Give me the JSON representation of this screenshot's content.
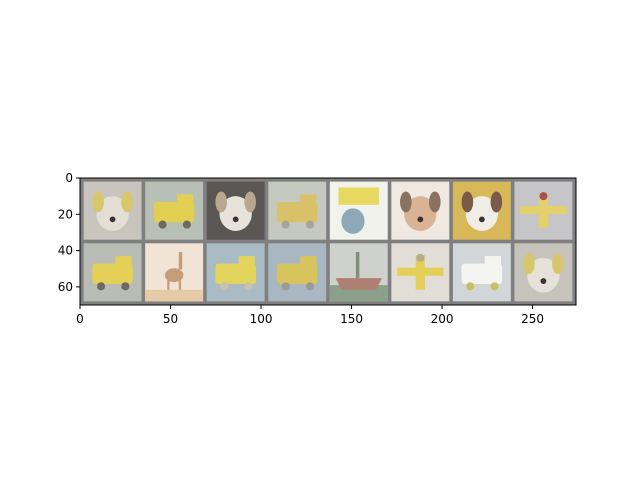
{
  "chart_data": {
    "type": "image_grid",
    "title": "",
    "xlabel": "",
    "ylabel": "",
    "xlim": [
      0,
      274
    ],
    "ylim": [
      70,
      0
    ],
    "xticks": [
      0,
      50,
      100,
      150,
      200,
      250
    ],
    "yticks": [
      0,
      20,
      40,
      60
    ],
    "grid": false,
    "legend": "none",
    "grid_layout": {
      "rows": 2,
      "cols": 8,
      "tile_size": 32,
      "padding": 2
    },
    "tiles": [
      {
        "row": 0,
        "col": 0,
        "subject": "dog",
        "bg": "#c9c4bd",
        "fg": "#e3dfd5",
        "accent": "#d8c66a"
      },
      {
        "row": 0,
        "col": 1,
        "subject": "truck",
        "bg": "#b8bfb4",
        "fg": "#e2cf52",
        "accent": "#6d6a5c"
      },
      {
        "row": 0,
        "col": 2,
        "subject": "dog",
        "bg": "#5a5654",
        "fg": "#e8e3da",
        "accent": "#b9a88f"
      },
      {
        "row": 0,
        "col": 3,
        "subject": "car",
        "bg": "#c5c9c0",
        "fg": "#d9c16a",
        "accent": "#a9a49a"
      },
      {
        "row": 0,
        "col": 4,
        "subject": "cat",
        "bg": "#f2f2ec",
        "fg": "#e7d85f",
        "accent": "#8da9b9"
      },
      {
        "row": 0,
        "col": 5,
        "subject": "dog",
        "bg": "#efe9e2",
        "fg": "#d9b394",
        "accent": "#8b7260"
      },
      {
        "row": 0,
        "col": 6,
        "subject": "dog",
        "bg": "#d9b85a",
        "fg": "#f0ede6",
        "accent": "#7a5a48"
      },
      {
        "row": 0,
        "col": 7,
        "subject": "plane",
        "bg": "#c6c6c9",
        "fg": "#e3d06a",
        "accent": "#a8505a"
      },
      {
        "row": 1,
        "col": 0,
        "subject": "truck",
        "bg": "#b8bcb5",
        "fg": "#e4cf58",
        "accent": "#6c6a63"
      },
      {
        "row": 1,
        "col": 1,
        "subject": "deer",
        "bg": "#f1e4d6",
        "fg": "#c59d79",
        "accent": "#e7cba8"
      },
      {
        "row": 1,
        "col": 2,
        "subject": "car",
        "bg": "#a9bcc6",
        "fg": "#e3d45e",
        "accent": "#cbbfae"
      },
      {
        "row": 1,
        "col": 3,
        "subject": "truck",
        "bg": "#a8b7c2",
        "fg": "#d8c45d",
        "accent": "#9d9a90"
      },
      {
        "row": 1,
        "col": 4,
        "subject": "ship",
        "bg": "#cfd1cc",
        "fg": "#7f8f7a",
        "accent": "#b07f73"
      },
      {
        "row": 1,
        "col": 5,
        "subject": "plane",
        "bg": "#e2ded7",
        "fg": "#e4cf58",
        "accent": "#b5ac90"
      },
      {
        "row": 1,
        "col": 6,
        "subject": "truck",
        "bg": "#d3d6d8",
        "fg": "#f4f4f1",
        "accent": "#cbbf63"
      },
      {
        "row": 1,
        "col": 7,
        "subject": "dog",
        "bg": "#c6c2bc",
        "fg": "#e5e1d8",
        "accent": "#d8c66a"
      }
    ]
  }
}
